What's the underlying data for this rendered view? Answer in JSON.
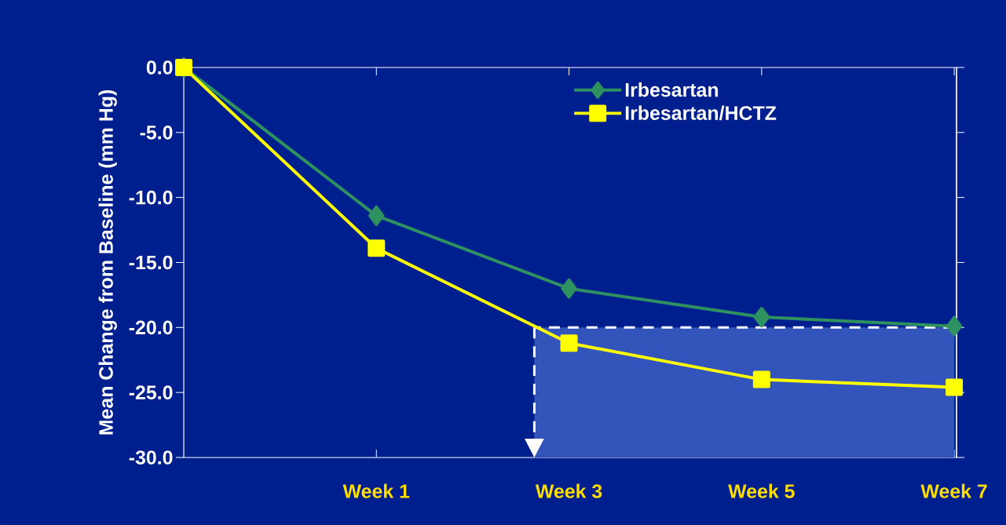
{
  "chart_data": {
    "type": "line",
    "ylabel": "Mean Change from Baseline (mm Hg)",
    "categories": [
      null,
      "Week 1",
      "Week 3",
      "Week 5",
      "Week 7"
    ],
    "series": [
      {
        "name": "Irbesartan",
        "color": "#2e9160",
        "marker": "diamond",
        "values": [
          0,
          -11.4,
          -17.0,
          -19.2,
          -19.9
        ]
      },
      {
        "name": "Irbesartan/HCTZ",
        "color": "#ffff00",
        "marker": "square",
        "values": [
          0,
          -13.9,
          -21.2,
          -24.0,
          -24.6
        ]
      }
    ],
    "ylim": [
      -30,
      0
    ],
    "yticks": [
      {
        "value": 0,
        "label": "0.0"
      },
      {
        "value": -5,
        "label": "-5.0"
      },
      {
        "value": -10,
        "label": "-10.0"
      },
      {
        "value": -15,
        "label": "-15.0"
      },
      {
        "value": -20,
        "label": "-20.0"
      },
      {
        "value": -25,
        "label": "-25.0"
      },
      {
        "value": -30,
        "label": "-30.0"
      }
    ],
    "bands": [
      {
        "axis": "y",
        "from": -30,
        "to": -20,
        "color": "#3355bb"
      }
    ],
    "ref_lines": [
      {
        "axis": "y",
        "value": -20,
        "color": "#ffffff",
        "line_style": "dashed"
      }
    ],
    "legend": "top right",
    "grid": false,
    "line_style": "solid"
  }
}
